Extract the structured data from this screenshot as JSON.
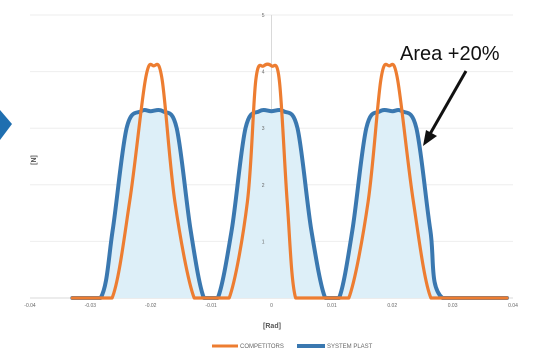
{
  "chart_data": {
    "type": "line",
    "title": "",
    "xlabel": "[Rad]",
    "ylabel": "[N]",
    "xlim": [
      -0.04,
      0.04
    ],
    "ylim": [
      0,
      5
    ],
    "x_ticks": [
      "-0.04",
      "-0.03",
      "-0.02",
      "-0.01",
      "0",
      "0.01",
      "0.02",
      "0.03",
      "0.04"
    ],
    "y_ticks": [
      "1",
      "2",
      "3",
      "4",
      "5"
    ],
    "grid": true,
    "legend_position": "bottom",
    "annotation": "Area +20%",
    "series": [
      {
        "name": "COMPETITORS",
        "color": "#ED7D31",
        "x": [
          -0.033,
          -0.03,
          -0.0264,
          -0.0235,
          -0.0209,
          -0.0195,
          -0.0181,
          -0.016,
          -0.0128,
          -0.0099,
          -0.007,
          -0.004,
          -0.0026,
          -0.0013,
          0.0,
          0.0013,
          0.0026,
          0.004,
          0.007,
          0.0099,
          0.0128,
          0.016,
          0.0181,
          0.0195,
          0.0209,
          0.0235,
          0.0264,
          0.03,
          0.039
        ],
        "y": [
          0,
          0,
          0,
          1.7,
          3.85,
          4.1,
          3.85,
          1.7,
          0,
          0,
          0,
          1.7,
          3.85,
          4.1,
          4.1,
          3.85,
          1.7,
          0,
          0,
          0,
          0,
          1.7,
          3.85,
          4.1,
          3.85,
          1.7,
          0,
          0,
          0
        ]
      },
      {
        "name": "SYSTEM PLAST",
        "color": "#3A78B0",
        "x": [
          -0.033,
          -0.0283,
          -0.0263,
          -0.024,
          -0.0216,
          -0.02,
          -0.018,
          -0.0157,
          -0.0134,
          -0.0112,
          -0.0089,
          -0.0066,
          -0.0043,
          -0.002,
          0.0,
          0.002,
          0.0043,
          0.0066,
          0.0089,
          0.0112,
          0.0134,
          0.0157,
          0.018,
          0.02,
          0.0216,
          0.024,
          0.0263,
          0.0283,
          0.039
        ],
        "y": [
          0,
          0,
          1.2,
          3.0,
          3.3,
          3.3,
          3.3,
          3.0,
          1.2,
          0,
          0,
          1.2,
          3.0,
          3.3,
          3.3,
          3.3,
          3.0,
          1.2,
          0,
          0,
          1.2,
          3.0,
          3.3,
          3.3,
          3.3,
          3.0,
          1.2,
          0,
          0
        ]
      }
    ]
  }
}
